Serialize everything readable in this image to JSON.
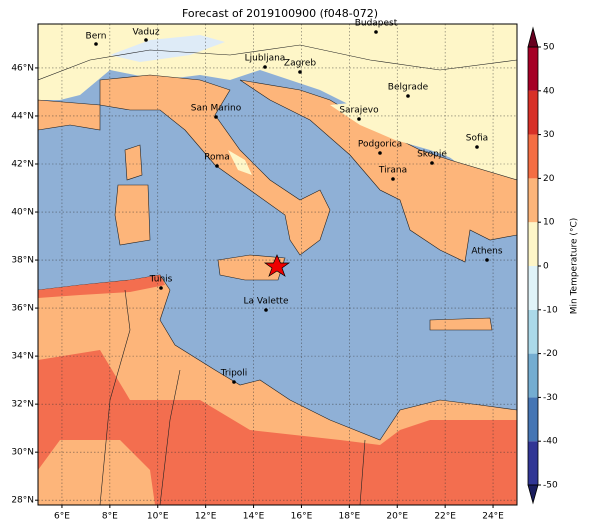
{
  "title": "Forecast of 2019100900 (f048-072)",
  "map": {
    "xlim": [
      5,
      25
    ],
    "ylim": [
      27.8,
      47.83
    ],
    "grid": true,
    "xticks": [
      {
        "value": 6,
        "label": "6°E"
      },
      {
        "value": 8,
        "label": "8°E"
      },
      {
        "value": 10,
        "label": "10°E"
      },
      {
        "value": 12,
        "label": "12°E"
      },
      {
        "value": 14,
        "label": "14°E"
      },
      {
        "value": 16,
        "label": "16°E"
      },
      {
        "value": 18,
        "label": "18°E"
      },
      {
        "value": 20,
        "label": "20°E"
      },
      {
        "value": 22,
        "label": "22°E"
      },
      {
        "value": 24,
        "label": "24°E"
      }
    ],
    "yticks": [
      {
        "value": 28,
        "label": "28°N"
      },
      {
        "value": 30,
        "label": "30°N"
      },
      {
        "value": 32,
        "label": "32°N"
      },
      {
        "value": 34,
        "label": "34°N"
      },
      {
        "value": 36,
        "label": "36°N"
      },
      {
        "value": 38,
        "label": "38°N"
      },
      {
        "value": 40,
        "label": "40°N"
      },
      {
        "value": 42,
        "label": "42°N"
      },
      {
        "value": 44,
        "label": "44°N"
      },
      {
        "value": 46,
        "label": "46°N"
      }
    ],
    "cities": [
      "Bern",
      "Vaduz",
      "Budapest",
      "Ljubljana",
      "Zagreb",
      "Belgrade",
      "San Marino",
      "Sarajevo",
      "Sofia",
      "Podgorica",
      "Skopje",
      "Roma",
      "Tirana",
      "Athens",
      "Tunis",
      "La Valette",
      "Tripoli"
    ]
  },
  "colorbar": {
    "label": "Min Temperature (°C)",
    "lim": [
      -50,
      50
    ],
    "ticks": [
      -50,
      -40,
      -30,
      -20,
      -10,
      0,
      10,
      20,
      30,
      40,
      50
    ],
    "colors": [
      "#313695",
      "#4575b4",
      "#74add1",
      "#abd9e9",
      "#e0f3f8",
      "#fef6c8",
      "#fdb57a",
      "#f46d43",
      "#d73027",
      "#a50026"
    ]
  }
}
